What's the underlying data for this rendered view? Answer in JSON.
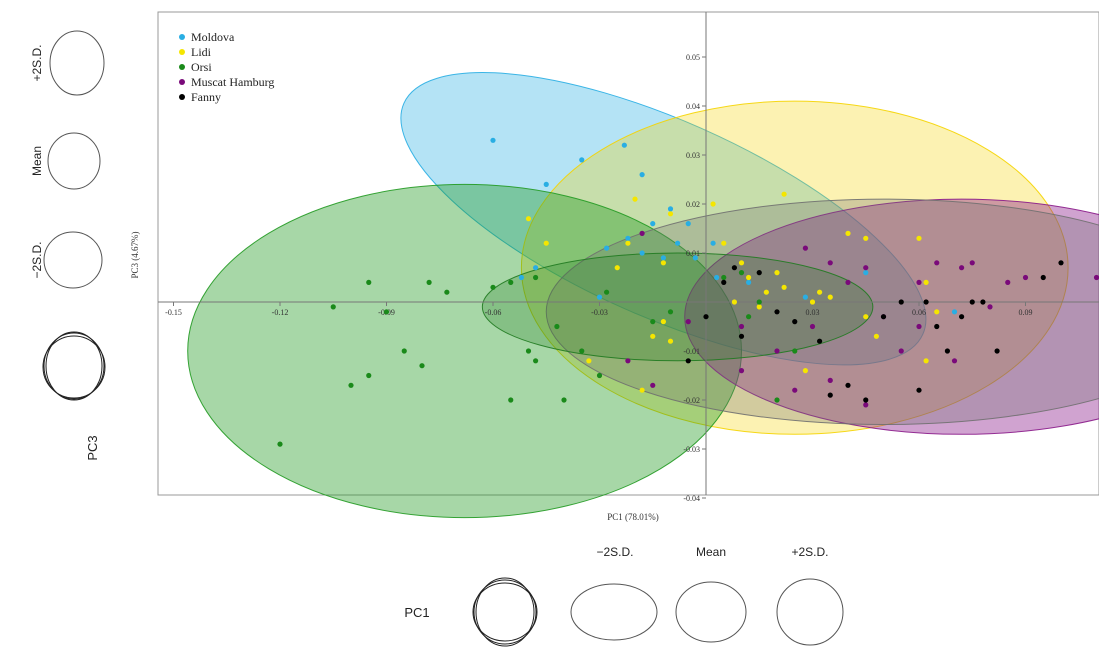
{
  "chart_data": {
    "type": "scatter",
    "xlabel": "PC1 (78.01%)",
    "ylabel": "PC3 (4.67%)",
    "xlim": [
      -0.165,
      0.165
    ],
    "ylim": [
      -0.04,
      0.058
    ],
    "x_ticks": [
      -0.15,
      -0.12,
      -0.09,
      -0.06,
      -0.03,
      0.03,
      0.06,
      0.09
    ],
    "x_tick_labels": [
      "-0.15",
      "-0.12",
      "-0.09",
      "-0.06",
      "-0.03",
      "0.03",
      "0.06",
      "0.09"
    ],
    "y_ticks": [
      0.05,
      0.04,
      0.03,
      0.02,
      0.01,
      -0.01,
      -0.02,
      -0.03,
      -0.04
    ],
    "y_tick_labels": [
      "0.05",
      "0.04",
      "0.03",
      "0.02",
      "0.01",
      "-0.01",
      "-0.02",
      "-0.03",
      "-0.04"
    ],
    "grid": false,
    "legend_position": "top-left",
    "series": [
      {
        "name": "Moldova",
        "color": "#29aee3",
        "points": [
          [
            -0.06,
            0.033
          ],
          [
            -0.045,
            0.024
          ],
          [
            -0.035,
            0.029
          ],
          [
            -0.023,
            0.032
          ],
          [
            -0.018,
            0.026
          ],
          [
            -0.015,
            0.016
          ],
          [
            -0.01,
            0.019
          ],
          [
            -0.008,
            0.012
          ],
          [
            -0.022,
            0.013
          ],
          [
            -0.028,
            0.011
          ],
          [
            -0.012,
            0.009
          ],
          [
            -0.005,
            0.016
          ],
          [
            0.002,
            0.012
          ],
          [
            -0.048,
            0.007
          ],
          [
            -0.052,
            0.005
          ],
          [
            -0.03,
            0.001
          ],
          [
            -0.018,
            0.01
          ],
          [
            -0.003,
            0.009
          ],
          [
            0.003,
            0.005
          ],
          [
            0.012,
            0.004
          ],
          [
            0.045,
            0.006
          ],
          [
            0.028,
            0.001
          ],
          [
            0.07,
            -0.002
          ]
        ]
      },
      {
        "name": "Lidi",
        "color": "#f5e600",
        "points": [
          [
            -0.05,
            0.017
          ],
          [
            -0.045,
            0.012
          ],
          [
            -0.02,
            0.021
          ],
          [
            -0.01,
            0.018
          ],
          [
            -0.022,
            0.012
          ],
          [
            -0.012,
            0.008
          ],
          [
            -0.025,
            0.007
          ],
          [
            0.005,
            0.012
          ],
          [
            0.01,
            0.008
          ],
          [
            0.012,
            0.005
          ],
          [
            0.017,
            0.002
          ],
          [
            0.02,
            0.006
          ],
          [
            0.022,
            0.003
          ],
          [
            0.032,
            0.002
          ],
          [
            0.04,
            0.014
          ],
          [
            0.045,
            0.013
          ],
          [
            0.06,
            0.013
          ],
          [
            0.062,
            0.004
          ],
          [
            0.065,
            -0.002
          ],
          [
            0.062,
            -0.012
          ],
          [
            -0.012,
            -0.004
          ],
          [
            -0.015,
            -0.007
          ],
          [
            -0.01,
            -0.008
          ],
          [
            -0.018,
            -0.018
          ],
          [
            0.008,
            0.0
          ],
          [
            0.015,
            -0.001
          ],
          [
            0.03,
            0.0
          ],
          [
            0.035,
            0.001
          ],
          [
            0.045,
            -0.003
          ],
          [
            0.048,
            -0.007
          ],
          [
            0.028,
            -0.014
          ],
          [
            0.022,
            0.022
          ],
          [
            0.002,
            0.02
          ],
          [
            -0.033,
            -0.012
          ]
        ]
      },
      {
        "name": "Orsi",
        "color": "#1a8a1a",
        "points": [
          [
            -0.12,
            -0.029
          ],
          [
            -0.1,
            -0.017
          ],
          [
            -0.095,
            -0.015
          ],
          [
            -0.095,
            0.004
          ],
          [
            -0.09,
            -0.002
          ],
          [
            -0.085,
            -0.01
          ],
          [
            -0.08,
            -0.013
          ],
          [
            -0.078,
            0.004
          ],
          [
            -0.073,
            0.002
          ],
          [
            -0.06,
            0.003
          ],
          [
            -0.055,
            0.004
          ],
          [
            -0.055,
            -0.02
          ],
          [
            -0.05,
            -0.01
          ],
          [
            -0.048,
            -0.012
          ],
          [
            -0.042,
            -0.005
          ],
          [
            -0.04,
            -0.02
          ],
          [
            -0.035,
            -0.01
          ],
          [
            -0.03,
            -0.015
          ],
          [
            -0.028,
            0.002
          ],
          [
            -0.015,
            -0.004
          ],
          [
            -0.01,
            -0.002
          ],
          [
            0.005,
            0.005
          ],
          [
            0.01,
            0.006
          ],
          [
            0.015,
            0.0
          ],
          [
            0.02,
            -0.02
          ],
          [
            0.025,
            -0.01
          ],
          [
            -0.105,
            -0.001
          ],
          [
            -0.048,
            0.005
          ],
          [
            0.012,
            -0.003
          ]
        ]
      },
      {
        "name": "Muscat Hamburg",
        "color": "#7a0a7a",
        "points": [
          [
            0.028,
            0.011
          ],
          [
            0.035,
            0.008
          ],
          [
            0.04,
            0.004
          ],
          [
            0.045,
            0.007
          ],
          [
            0.05,
            -0.003
          ],
          [
            0.055,
            -0.01
          ],
          [
            0.06,
            0.004
          ],
          [
            0.065,
            0.008
          ],
          [
            0.072,
            0.007
          ],
          [
            0.08,
            -0.001
          ],
          [
            0.085,
            0.004
          ],
          [
            0.09,
            0.005
          ],
          [
            0.11,
            0.005
          ],
          [
            0.115,
            0.006
          ],
          [
            0.12,
            0.0
          ],
          [
            0.13,
            -0.003
          ],
          [
            0.07,
            -0.012
          ],
          [
            0.045,
            -0.021
          ],
          [
            0.035,
            -0.016
          ],
          [
            0.025,
            -0.018
          ],
          [
            -0.022,
            -0.012
          ],
          [
            -0.015,
            -0.017
          ],
          [
            0.01,
            -0.005
          ],
          [
            -0.005,
            -0.004
          ],
          [
            0.03,
            -0.005
          ],
          [
            0.06,
            -0.005
          ],
          [
            0.075,
            0.008
          ],
          [
            -0.018,
            0.014
          ],
          [
            0.01,
            -0.014
          ],
          [
            0.02,
            -0.01
          ]
        ]
      },
      {
        "name": "Fanny",
        "color": "#000000",
        "points": [
          [
            0.005,
            0.004
          ],
          [
            0.008,
            0.007
          ],
          [
            0.015,
            0.006
          ],
          [
            0.02,
            -0.002
          ],
          [
            0.025,
            -0.004
          ],
          [
            0.032,
            -0.008
          ],
          [
            0.035,
            -0.019
          ],
          [
            0.04,
            -0.017
          ],
          [
            0.05,
            -0.003
          ],
          [
            0.055,
            0.0
          ],
          [
            0.062,
            0.0
          ],
          [
            0.065,
            -0.005
          ],
          [
            0.068,
            -0.01
          ],
          [
            0.072,
            -0.003
          ],
          [
            0.075,
            0.0
          ],
          [
            0.078,
            0.0
          ],
          [
            0.082,
            -0.01
          ],
          [
            0.1,
            0.008
          ],
          [
            0.095,
            0.005
          ],
          [
            0.06,
            -0.018
          ],
          [
            -0.005,
            -0.012
          ],
          [
            0.0,
            -0.003
          ],
          [
            0.01,
            -0.007
          ],
          [
            0.045,
            -0.02
          ]
        ]
      }
    ],
    "ellipses": [
      {
        "series": "Moldova",
        "cx": -0.012,
        "cy": 0.017,
        "rx": 0.08,
        "ry": 0.02,
        "angle_deg": 24,
        "fill": "#29aee3",
        "opacity": 0.35
      },
      {
        "series": "Lidi",
        "cx": 0.025,
        "cy": 0.007,
        "rx": 0.077,
        "ry": 0.034,
        "angle_deg": 0,
        "fill": "#f5d400",
        "opacity": 0.3
      },
      {
        "series": "Orsi",
        "cx": -0.068,
        "cy": -0.01,
        "rx": 0.078,
        "ry": 0.034,
        "angle_deg": 0,
        "fill": "#229a22",
        "opacity": 0.4
      },
      {
        "series": "Muscat Hamburg",
        "cx": 0.072,
        "cy": -0.003,
        "rx": 0.078,
        "ry": 0.024,
        "angle_deg": 0,
        "fill": "#8a1a8a",
        "opacity": 0.4
      },
      {
        "series": "Fanny",
        "cx": 0.05,
        "cy": -0.002,
        "rx": 0.095,
        "ry": 0.023,
        "angle_deg": 0,
        "fill": "#707070",
        "opacity": 0.3
      },
      {
        "series": "",
        "cx": -0.008,
        "cy": -0.001,
        "rx": 0.055,
        "ry": 0.011,
        "angle_deg": 0,
        "fill": "#207a20",
        "opacity": 0.25
      }
    ]
  },
  "pc3_panel": {
    "labels": [
      "+2S.D.",
      "Mean",
      "−2S.D.",
      "PC3"
    ]
  },
  "pc1_panel": {
    "title": "PC1",
    "labels": [
      "−2S.D.",
      "Mean",
      "+2S.D."
    ]
  }
}
